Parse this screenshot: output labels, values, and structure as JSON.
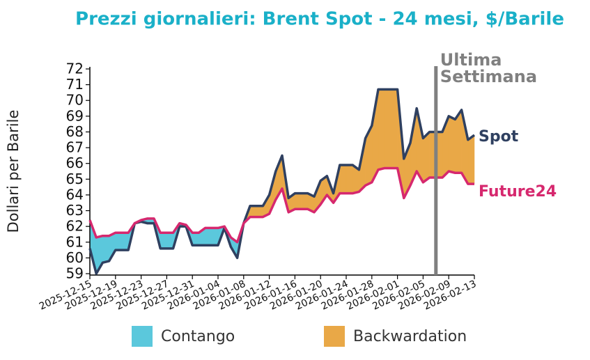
{
  "chart_data": {
    "type": "line",
    "title": "Prezzi giornalieri: Brent Spot - 24 mesi, $/Barile",
    "y_label": "Dollari per Barile",
    "x": [
      "2025-12-15",
      "2025-12-16",
      "2025-12-17",
      "2025-12-18",
      "2025-12-19",
      "2025-12-20",
      "2025-12-21",
      "2025-12-22",
      "2025-12-23",
      "2025-12-24",
      "2025-12-25",
      "2025-12-26",
      "2025-12-27",
      "2025-12-28",
      "2025-12-29",
      "2025-12-30",
      "2025-12-31",
      "2026-01-01",
      "2026-01-02",
      "2026-01-03",
      "2026-01-04",
      "2026-01-05",
      "2026-01-06",
      "2026-01-07",
      "2026-01-08",
      "2026-01-09",
      "2026-01-10",
      "2026-01-11",
      "2026-01-12",
      "2026-01-13",
      "2026-01-14",
      "2026-01-15",
      "2026-01-16",
      "2026-01-17",
      "2026-01-18",
      "2026-01-19",
      "2026-01-20",
      "2026-01-21",
      "2026-01-22",
      "2026-01-23",
      "2026-01-24",
      "2026-01-25",
      "2026-01-26",
      "2026-01-27",
      "2026-01-28",
      "2026-01-29",
      "2026-01-30",
      "2026-01-31",
      "2026-02-01",
      "2026-02-02",
      "2026-02-03",
      "2026-02-04",
      "2026-02-05",
      "2026-02-06",
      "2026-02-07",
      "2026-02-08",
      "2026-02-09",
      "2026-02-10",
      "2026-02-11",
      "2026-02-12",
      "2026-02-13"
    ],
    "series": [
      {
        "name": "Spot",
        "color": "#2f4060",
        "values": [
          60.6,
          59.0,
          59.7,
          59.8,
          60.5,
          60.5,
          60.5,
          62.2,
          62.3,
          62.2,
          62.2,
          60.6,
          60.6,
          60.6,
          62.0,
          62.0,
          60.8,
          60.8,
          60.8,
          60.8,
          60.8,
          61.9,
          60.7,
          60.0,
          62.2,
          63.3,
          63.3,
          63.3,
          64.0,
          65.5,
          66.5,
          63.8,
          64.1,
          64.1,
          64.1,
          63.9,
          64.9,
          65.2,
          64.1,
          65.9,
          65.9,
          65.9,
          65.6,
          67.6,
          68.4,
          70.7,
          70.7,
          70.7,
          70.7,
          66.3,
          67.3,
          69.5,
          67.6,
          68.0,
          68.0,
          68.0,
          69.0,
          68.8,
          69.4,
          67.5,
          67.8
        ]
      },
      {
        "name": "Future24",
        "color": "#d6286e",
        "values": [
          62.4,
          61.3,
          61.4,
          61.4,
          61.6,
          61.6,
          61.6,
          62.2,
          62.4,
          62.5,
          62.5,
          61.6,
          61.6,
          61.6,
          62.2,
          62.1,
          61.6,
          61.6,
          61.9,
          61.9,
          61.9,
          62.0,
          61.3,
          61.0,
          62.2,
          62.6,
          62.6,
          62.6,
          62.8,
          63.7,
          64.4,
          62.9,
          63.1,
          63.1,
          63.1,
          62.9,
          63.4,
          64.0,
          63.5,
          64.1,
          64.1,
          64.1,
          64.2,
          64.6,
          64.8,
          65.6,
          65.7,
          65.7,
          65.7,
          63.8,
          64.6,
          65.5,
          64.8,
          65.1,
          65.1,
          65.1,
          65.5,
          65.4,
          65.4,
          64.7,
          64.7
        ]
      }
    ],
    "fills": [
      {
        "name": "Contango",
        "color": "#5bc8dc"
      },
      {
        "name": "Backwardation",
        "color": "#e9a847"
      }
    ],
    "annotation": {
      "x": "2026-02-07",
      "color": "#808080",
      "lines": [
        "Ultima",
        "Settimana"
      ]
    },
    "ylim": [
      59,
      72
    ],
    "yticks": [
      59,
      60,
      61,
      62,
      63,
      64,
      65,
      66,
      67,
      68,
      69,
      70,
      71,
      72
    ],
    "xlim": [
      "2025-12-15",
      "2026-02-13"
    ],
    "xticks": [
      "2025-12-15",
      "2025-12-19",
      "2025-12-23",
      "2025-12-27",
      "2025-12-31",
      "2026-01-04",
      "2026-01-08",
      "2026-01-12",
      "2026-01-16",
      "2026-01-20",
      "2026-01-24",
      "2026-01-28",
      "2026-02-01",
      "2026-02-05",
      "2026-02-09",
      "2026-02-13"
    ]
  }
}
